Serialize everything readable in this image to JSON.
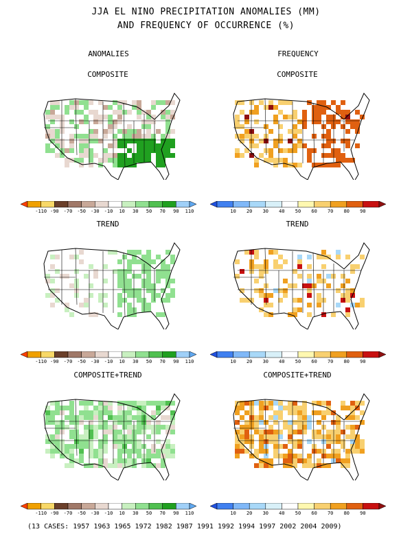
{
  "title_line1": "JJA EL NINO PRECIPITATION ANOMALIES (MM)",
  "title_line2": "AND FREQUENCY OF OCCURRENCE (%)",
  "column_headers": {
    "left": "ANOMALIES",
    "right": "FREQUENCY"
  },
  "panels": [
    {
      "id": "anom-composite",
      "label": "COMPOSITE",
      "kind": "anomaly",
      "dominant": "mixed-wet-southeast"
    },
    {
      "id": "freq-composite",
      "label": "COMPOSITE",
      "kind": "frequency",
      "dominant": "high-east"
    },
    {
      "id": "anom-trend",
      "label": "TREND",
      "kind": "anomaly",
      "dominant": "wet-east"
    },
    {
      "id": "freq-trend",
      "label": "TREND",
      "kind": "frequency",
      "dominant": "scattered"
    },
    {
      "id": "anom-composite-trend",
      "label": "COMPOSITE+TREND",
      "kind": "anomaly",
      "dominant": "wet-widespread"
    },
    {
      "id": "freq-composite-trend",
      "label": "COMPOSITE+TREND",
      "kind": "frequency",
      "dominant": "high-widespread"
    }
  ],
  "anomaly_scale": {
    "labels": [
      "-110",
      "-90",
      "-70",
      "-50",
      "-30",
      "-10",
      "10",
      "30",
      "50",
      "70",
      "90",
      "110"
    ],
    "colors": [
      "#ff4000",
      "#f0a000",
      "#f8d868",
      "#6b3f2a",
      "#a07868",
      "#c8a898",
      "#e8d8d0",
      "#ffffff",
      "#c8f0c0",
      "#90e090",
      "#50c050",
      "#20a020",
      "#a0d0f8",
      "#60a8f0"
    ]
  },
  "frequency_scale": {
    "labels": [
      "10",
      "20",
      "30",
      "40",
      "50",
      "60",
      "70",
      "80",
      "90"
    ],
    "colors": [
      "#2050e0",
      "#4080f0",
      "#80b8f8",
      "#a8d8f8",
      "#d8f0f8",
      "#ffffff",
      "#fff8b0",
      "#f8d070",
      "#f0a020",
      "#e06010",
      "#c81010",
      "#901010"
    ]
  },
  "footer": "(13 CASES:  1957 1963 1965 1972 1982 1987 1991 1992 1994 1997 2002 2004 2009)",
  "chart_data": {
    "type": "heatmap",
    "title": "JJA EL NINO PRECIPITATION ANOMALIES (MM) AND FREQUENCY OF OCCURRENCE (%)",
    "panels": [
      "COMPOSITE",
      "TREND",
      "COMPOSITE+TREND"
    ],
    "anomaly_bins_mm": [
      -110,
      -90,
      -70,
      -50,
      -30,
      -10,
      10,
      30,
      50,
      70,
      90,
      110
    ],
    "frequency_bins_pct": [
      10,
      20,
      30,
      40,
      50,
      60,
      70,
      80,
      90
    ],
    "cases": [
      1957,
      1963,
      1965,
      1972,
      1982,
      1987,
      1991,
      1992,
      1994,
      1997,
      2002,
      2004,
      2009
    ]
  }
}
